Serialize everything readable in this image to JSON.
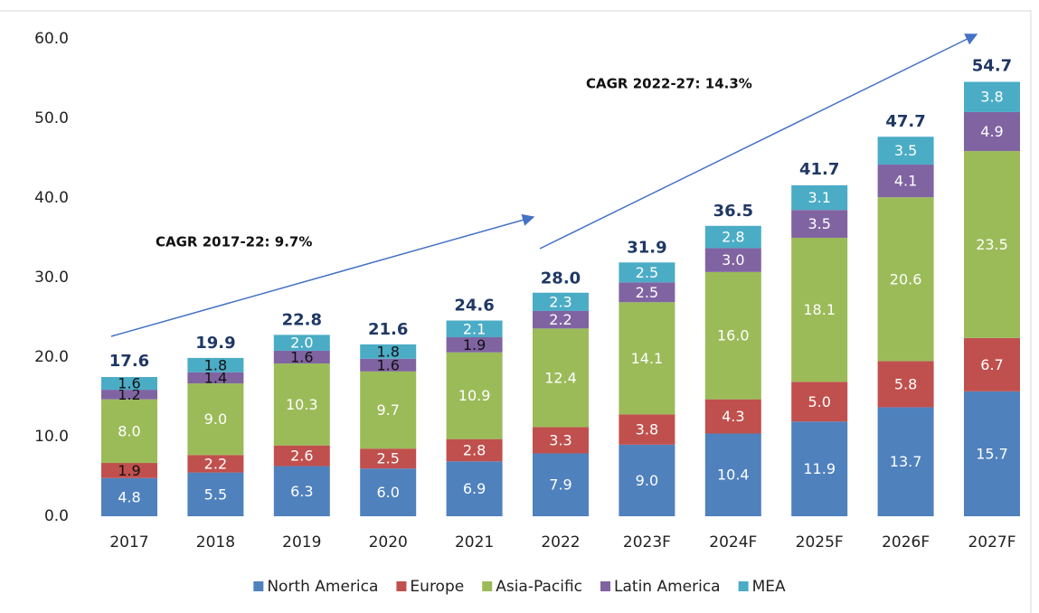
{
  "chart_data": {
    "type": "stacked_bar",
    "categories": [
      "2017",
      "2018",
      "2019",
      "2020",
      "2021",
      "2022",
      "2023F",
      "2024F",
      "2025F",
      "2026F",
      "2027F"
    ],
    "series": [
      {
        "name": "North America",
        "color": "#4f81bd",
        "values": [
          4.8,
          5.5,
          6.3,
          6.0,
          6.9,
          7.9,
          9.0,
          10.4,
          11.9,
          13.7,
          15.7
        ],
        "value_labels": [
          "4.8",
          "5.5",
          "6.3",
          "6.0",
          "6.9",
          "7.9",
          "9.0",
          "10.4",
          "11.9",
          "13.7",
          "15.7"
        ]
      },
      {
        "name": "Europe",
        "color": "#c0504d",
        "values": [
          1.9,
          2.2,
          2.6,
          2.5,
          2.8,
          3.3,
          3.8,
          4.3,
          5.0,
          5.8,
          6.7
        ],
        "value_labels": [
          "1.9",
          "2.2",
          "2.6",
          "2.5",
          "2.8",
          "3.3",
          "3.8",
          "4.3",
          "5.0",
          "5.8",
          "6.7"
        ]
      },
      {
        "name": "Asia-Pacific",
        "color": "#9bbb59",
        "values": [
          8.0,
          9.0,
          10.3,
          9.7,
          10.9,
          12.4,
          14.1,
          16.0,
          18.1,
          20.6,
          23.5
        ],
        "value_labels": [
          "8.0",
          "9.0",
          "10.3",
          "9.7",
          "10.9",
          "12.4",
          "14.1",
          "16.0",
          "18.1",
          "20.6",
          "23.5"
        ]
      },
      {
        "name": "Latin America",
        "color": "#8064a2",
        "values": [
          1.2,
          1.4,
          1.6,
          1.6,
          1.9,
          2.2,
          2.5,
          3.0,
          3.5,
          4.1,
          4.9
        ],
        "value_labels": [
          "1.2",
          "1.4",
          "1.6",
          "1.6",
          "1.9",
          "2.2",
          "2.5",
          "3.0",
          "3.5",
          "4.1",
          "4.9"
        ]
      },
      {
        "name": "MEA",
        "color": "#4bacc6",
        "values": [
          1.6,
          1.8,
          2.0,
          1.8,
          2.1,
          2.3,
          2.5,
          2.8,
          3.1,
          3.5,
          3.8
        ],
        "value_labels": [
          "1.6",
          "1.8",
          "2.0",
          "1.8",
          "2.1",
          "2.3",
          "2.5",
          "2.8",
          "3.1",
          "3.5",
          "3.8"
        ]
      }
    ],
    "totals": [
      17.6,
      19.9,
      22.8,
      21.6,
      24.6,
      28.0,
      31.9,
      36.5,
      41.7,
      47.7,
      54.7
    ],
    "total_labels": [
      "17.6",
      "19.9",
      "22.8",
      "21.6",
      "24.6",
      "28.0",
      "31.9",
      "36.5",
      "41.7",
      "47.7",
      "54.7"
    ],
    "annotations": [
      "CAGR 2017-22: 9.7%",
      "CAGR 2022-27: 14.3%"
    ],
    "ylim": [
      0,
      60
    ],
    "yticks": [
      {
        "value": 0,
        "label": "0.0"
      },
      {
        "value": 10,
        "label": "10.0"
      },
      {
        "value": 20,
        "label": "20.0"
      },
      {
        "value": 30,
        "label": "30.0"
      },
      {
        "value": 40,
        "label": "40.0"
      },
      {
        "value": 50,
        "label": "50.0"
      },
      {
        "value": 60,
        "label": "60.0"
      }
    ],
    "legend": "bottom"
  }
}
